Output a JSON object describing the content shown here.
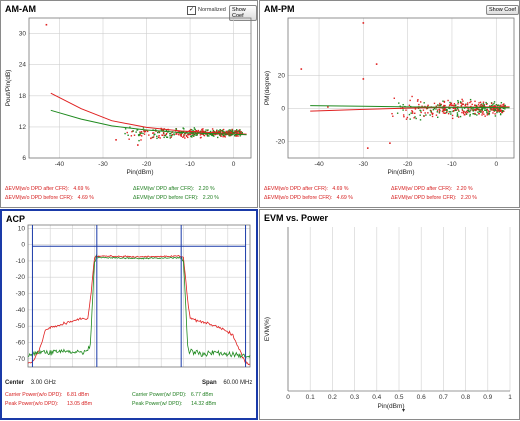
{
  "amam": {
    "title": "AM-AM",
    "normalized_label": "Normalized",
    "normalized_checked": true,
    "checkmark": "✓",
    "show_coef_label": "Show Coef",
    "ylabel": "Pout/Pin(dB)",
    "xlabel": "Pin(dBm)",
    "xticks": [
      "-40",
      "-30",
      "-20",
      "-10",
      "0"
    ],
    "yticks": [
      "30",
      "24",
      "18",
      "12",
      "6"
    ],
    "stats": {
      "wo_after_label": "ΔEVM(w/o DPD after CFR):",
      "wo_after_value": "4.69 %",
      "wo_before_label": "ΔEVM(w/o DPD before CFR):",
      "wo_before_value": "4.69 %",
      "w_after_label": "ΔEVM(w/ DPD after CFR):",
      "w_after_value": "2.20 %",
      "w_before_label": "ΔEVM(w/ DPD before CFR):",
      "w_before_value": "2.20 %"
    }
  },
  "ampm": {
    "title": "AM-PM",
    "show_coef_label": "Show Coef",
    "ylabel": "PM(degree)",
    "xlabel": "Pin(dBm)",
    "xticks": [
      "-40",
      "-30",
      "-20",
      "-10",
      "0"
    ],
    "yticks": [
      "20",
      "0",
      "-20"
    ],
    "stats": {
      "wo_after_label": "ΔEVM(w/o DPD after CFR):",
      "wo_after_value": "4.69 %",
      "wo_before_label": "ΔEVM(w/o DPD before CFR):",
      "wo_before_value": "4.69 %",
      "w_after_label": "ΔEVM(w/ DPD after CFR):",
      "w_after_value": "2.20 %",
      "w_before_label": "ΔEVM(w/ DPD before CFR):",
      "w_before_value": "2.20 %"
    }
  },
  "acp": {
    "title": "ACP",
    "yticks": [
      "10",
      "0",
      "-10",
      "-20",
      "-30",
      "-40",
      "-50",
      "-60",
      "-70"
    ],
    "center_label": "Center",
    "center_value": "3.00 GHz",
    "span_label": "Span",
    "span_value": "60.00 MHz",
    "carrier_wo_label": "Carrier Power(w/o DPD):",
    "carrier_wo_value": "6.81 dBm",
    "peak_wo_label": "Peak Power(w/o DPD):",
    "peak_wo_value": "13.05 dBm",
    "carrier_w_label": "Carrier Power(w/ DPD):",
    "carrier_w_value": "6.77 dBm",
    "peak_w_label": "Peak Power(w/ DPD):",
    "peak_w_value": "14.32 dBm"
  },
  "evm": {
    "title": "EVM vs. Power",
    "ylabel": "EVM(%)",
    "xlabel": "Pin(dBm)",
    "dropdown_glyph": "▾",
    "xticks": [
      "0",
      "0.1",
      "0.2",
      "0.3",
      "0.4",
      "0.5",
      "0.6",
      "0.7",
      "0.8",
      "0.9",
      "1"
    ]
  },
  "colors": {
    "wo_dpd": "#e02020",
    "w_dpd": "#1f8a1f",
    "marker": "#1a3aa8",
    "grid": "#d0d0d0"
  },
  "chart_data": [
    {
      "type": "scatter",
      "title": "AM-AM",
      "xlabel": "Pin(dBm)",
      "ylabel": "Pout/Pin(dB)",
      "xlim": [
        -47,
        4
      ],
      "ylim": [
        6,
        33
      ],
      "grid": true,
      "series": [
        {
          "fit_x": [
            -42,
            -35,
            -28,
            -20,
            -12,
            -5,
            0,
            3
          ],
          "fit_y": [
            18.5,
            15.5,
            13.2,
            11.9,
            11.2,
            10.9,
            10.7,
            10.6
          ]
        },
        {
          "fit_x": [
            -42,
            -35,
            -28,
            -20,
            -12,
            -5,
            0,
            3
          ],
          "fit_y": [
            15.2,
            13.5,
            12.2,
            11.4,
            10.9,
            10.7,
            10.6,
            10.5
          ]
        }
      ],
      "outliers": [
        {
          "x": -43,
          "y": 31.7
        },
        {
          "x": -27,
          "y": 9.5
        },
        {
          "x": -22,
          "y": 8.5
        },
        {
          "x": -19,
          "y": 9.8
        }
      ],
      "cloud": {
        "x_range": [
          -25,
          2
        ],
        "y_center": 10.8,
        "y_spread": 1.3
      }
    },
    {
      "type": "scatter",
      "title": "AM-PM",
      "xlabel": "Pin(dBm)",
      "ylabel": "PM(degree)",
      "xlim": [
        -47,
        4
      ],
      "ylim": [
        -30,
        55
      ],
      "grid": true,
      "series": [
        {
          "fit_x": [
            -42,
            -30,
            -20,
            -10,
            0,
            3
          ],
          "fit_y": [
            -1.5,
            -0.5,
            0.3,
            0.8,
            1.0,
            1.0
          ]
        },
        {
          "fit_x": [
            -42,
            -30,
            -20,
            -10,
            0,
            3
          ],
          "fit_y": [
            1.8,
            1.4,
            1.0,
            0.8,
            0.6,
            0.5
          ]
        }
      ],
      "outliers": [
        {
          "x": -30,
          "y": 52
        },
        {
          "x": -44,
          "y": 24
        },
        {
          "x": -27,
          "y": 27
        },
        {
          "x": -30,
          "y": 18
        },
        {
          "x": -29,
          "y": -24
        },
        {
          "x": -24,
          "y": -21
        },
        {
          "x": -38,
          "y": 1
        }
      ],
      "cloud": {
        "x_range": [
          -24,
          2
        ],
        "y_center": 0,
        "y_spread": 8
      }
    },
    {
      "type": "line",
      "title": "ACP",
      "ylim": [
        -75,
        12
      ],
      "grid": true,
      "series": [
        {
          "x": [
            0,
            0.02,
            0.05,
            0.08,
            0.15,
            0.22,
            0.27,
            0.28,
            0.3,
            0.32,
            0.5,
            0.68,
            0.7,
            0.72,
            0.73,
            0.78,
            0.85,
            0.92,
            0.95,
            0.98,
            1
          ],
          "y": [
            -73,
            -72,
            -65,
            -52,
            -49,
            -46,
            -45,
            -35,
            -8,
            -7,
            -7.5,
            -7,
            -8,
            -35,
            -45,
            -47,
            -50,
            -55,
            -64,
            -72,
            -73
          ]
        },
        {
          "x": [
            0,
            0.05,
            0.1,
            0.15,
            0.2,
            0.25,
            0.28,
            0.3,
            0.32,
            0.5,
            0.68,
            0.7,
            0.72,
            0.75,
            0.8,
            0.85,
            0.9,
            0.95,
            1
          ],
          "y": [
            -68,
            -66,
            -66,
            -65,
            -66,
            -66,
            -64,
            -9,
            -8,
            -8.5,
            -8,
            -9,
            -64,
            -66,
            -67,
            -66,
            -67,
            -68,
            -69
          ]
        }
      ]
    },
    {
      "type": "scatter",
      "title": "EVM vs. Power",
      "xlabel": "Pin(dBm)",
      "ylabel": "EVM(%)",
      "xlim": [
        0,
        1
      ],
      "ylim": [
        0,
        1
      ],
      "grid": true,
      "series": []
    }
  ]
}
